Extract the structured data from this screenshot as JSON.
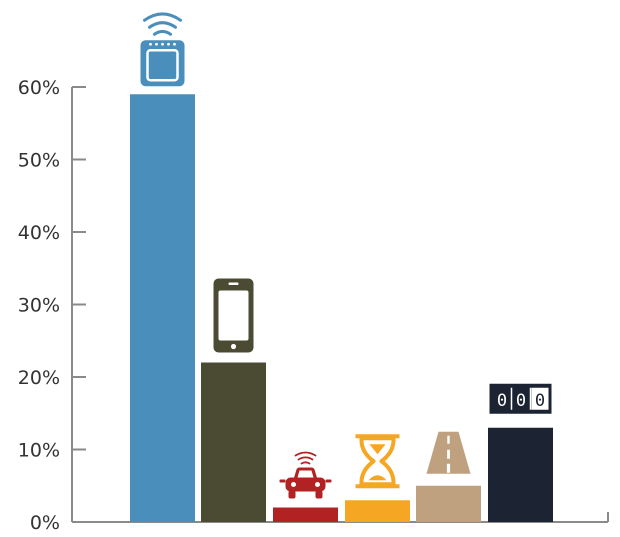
{
  "colors": {
    "axis": "#8a8a8a",
    "text": "#333333",
    "bars": [
      "#4a8fbb",
      "#4b4b33",
      "#b22222",
      "#f5a623",
      "#bfa07f",
      "#1c2333"
    ]
  },
  "chart_data": {
    "type": "bar",
    "ylim": [
      0,
      60
    ],
    "yticks": [
      0,
      10,
      20,
      30,
      40,
      50,
      60
    ],
    "ytick_labels": [
      "0%",
      "10%",
      "20%",
      "30%",
      "40%",
      "50%",
      "60%"
    ],
    "grid": false,
    "bars": [
      {
        "value": 59,
        "icon": "smart-oven-icon"
      },
      {
        "value": 22,
        "icon": "smartphone-icon"
      },
      {
        "value": 2,
        "icon": "connected-car-icon"
      },
      {
        "value": 3,
        "icon": "hourglass-icon"
      },
      {
        "value": 5,
        "icon": "road-icon"
      },
      {
        "value": 13,
        "icon": "odometer-icon"
      }
    ],
    "odometer_digits": [
      "0",
      "0",
      "0"
    ]
  }
}
